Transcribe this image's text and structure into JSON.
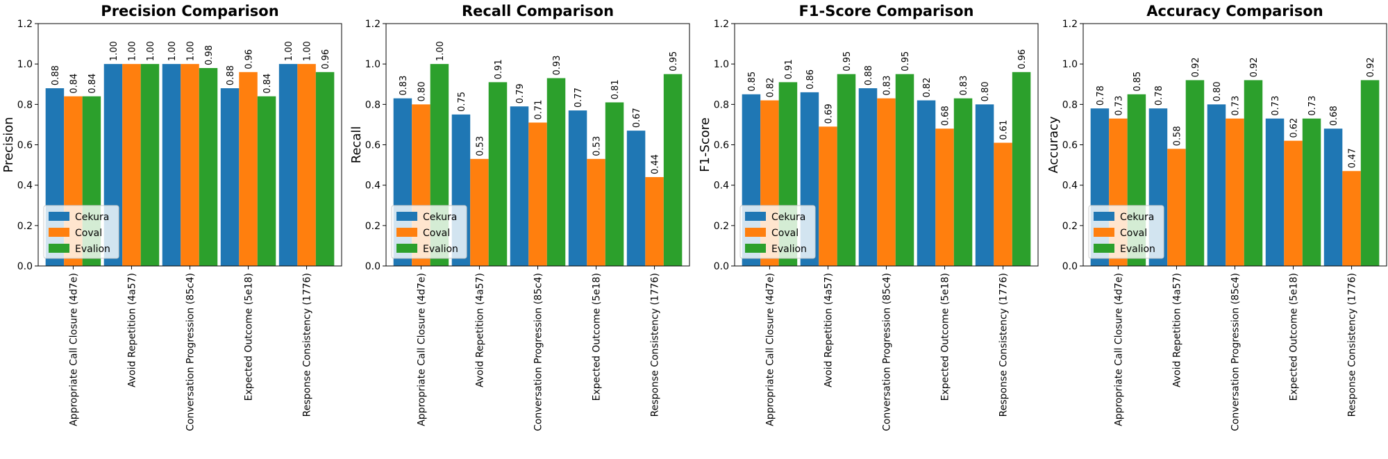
{
  "chart_data": [
    {
      "type": "bar",
      "title": "Precision Comparison",
      "xlabel": "",
      "ylabel": "Precision",
      "ylim": [
        0,
        1.2
      ],
      "yticks": [
        "0.0",
        "0.2",
        "0.4",
        "0.6",
        "0.8",
        "1.0",
        "1.2"
      ],
      "grid": false,
      "legend_position": "lower-left",
      "categories": [
        "Appropriate Call Closure (4d7e)",
        "Avoid Repetition (4a57)",
        "Conversation Progression (85c4)",
        "Expected Outcome (5e18)",
        "Response Consistency (1776)"
      ],
      "series": [
        {
          "name": "Cekura",
          "color": "#1f77b4",
          "values": [
            0.88,
            1.0,
            1.0,
            0.88,
            1.0
          ]
        },
        {
          "name": "Coval",
          "color": "#ff7f0e",
          "values": [
            0.84,
            1.0,
            1.0,
            0.96,
            1.0
          ]
        },
        {
          "name": "Evalion",
          "color": "#2ca02c",
          "values": [
            0.84,
            1.0,
            0.98,
            0.84,
            0.96
          ]
        }
      ]
    },
    {
      "type": "bar",
      "title": "Recall Comparison",
      "xlabel": "",
      "ylabel": "Recall",
      "ylim": [
        0,
        1.2
      ],
      "yticks": [
        "0.0",
        "0.2",
        "0.4",
        "0.6",
        "0.8",
        "1.0",
        "1.2"
      ],
      "grid": false,
      "legend_position": "lower-left",
      "categories": [
        "Appropriate Call Closure (4d7e)",
        "Avoid Repetition (4a57)",
        "Conversation Progression (85c4)",
        "Expected Outcome (5e18)",
        "Response Consistency (1776)"
      ],
      "series": [
        {
          "name": "Cekura",
          "color": "#1f77b4",
          "values": [
            0.83,
            0.75,
            0.79,
            0.77,
            0.67
          ]
        },
        {
          "name": "Coval",
          "color": "#ff7f0e",
          "values": [
            0.8,
            0.53,
            0.71,
            0.53,
            0.44
          ]
        },
        {
          "name": "Evalion",
          "color": "#2ca02c",
          "values": [
            1.0,
            0.91,
            0.93,
            0.81,
            0.95
          ]
        }
      ]
    },
    {
      "type": "bar",
      "title": "F1-Score Comparison",
      "xlabel": "",
      "ylabel": "F1-Score",
      "ylim": [
        0,
        1.2
      ],
      "yticks": [
        "0.0",
        "0.2",
        "0.4",
        "0.6",
        "0.8",
        "1.0",
        "1.2"
      ],
      "grid": false,
      "legend_position": "lower-left",
      "categories": [
        "Appropriate Call Closure (4d7e)",
        "Avoid Repetition (4a57)",
        "Conversation Progression (85c4)",
        "Expected Outcome (5e18)",
        "Response Consistency (1776)"
      ],
      "series": [
        {
          "name": "Cekura",
          "color": "#1f77b4",
          "values": [
            0.85,
            0.86,
            0.88,
            0.82,
            0.8
          ]
        },
        {
          "name": "Coval",
          "color": "#ff7f0e",
          "values": [
            0.82,
            0.69,
            0.83,
            0.68,
            0.61
          ]
        },
        {
          "name": "Evalion",
          "color": "#2ca02c",
          "values": [
            0.91,
            0.95,
            0.95,
            0.83,
            0.96
          ]
        }
      ]
    },
    {
      "type": "bar",
      "title": "Accuracy Comparison",
      "xlabel": "",
      "ylabel": "Accuracy",
      "ylim": [
        0,
        1.2
      ],
      "yticks": [
        "0.0",
        "0.2",
        "0.4",
        "0.6",
        "0.8",
        "1.0",
        "1.2"
      ],
      "grid": false,
      "legend_position": "lower-left",
      "categories": [
        "Appropriate Call Closure (4d7e)",
        "Avoid Repetition (4a57)",
        "Conversation Progression (85c4)",
        "Expected Outcome (5e18)",
        "Response Consistency (1776)"
      ],
      "series": [
        {
          "name": "Cekura",
          "color": "#1f77b4",
          "values": [
            0.78,
            0.78,
            0.8,
            0.73,
            0.68
          ]
        },
        {
          "name": "Coval",
          "color": "#ff7f0e",
          "values": [
            0.73,
            0.58,
            0.73,
            0.62,
            0.47
          ]
        },
        {
          "name": "Evalion",
          "color": "#2ca02c",
          "values": [
            0.85,
            0.92,
            0.92,
            0.73,
            0.92
          ]
        }
      ]
    }
  ]
}
